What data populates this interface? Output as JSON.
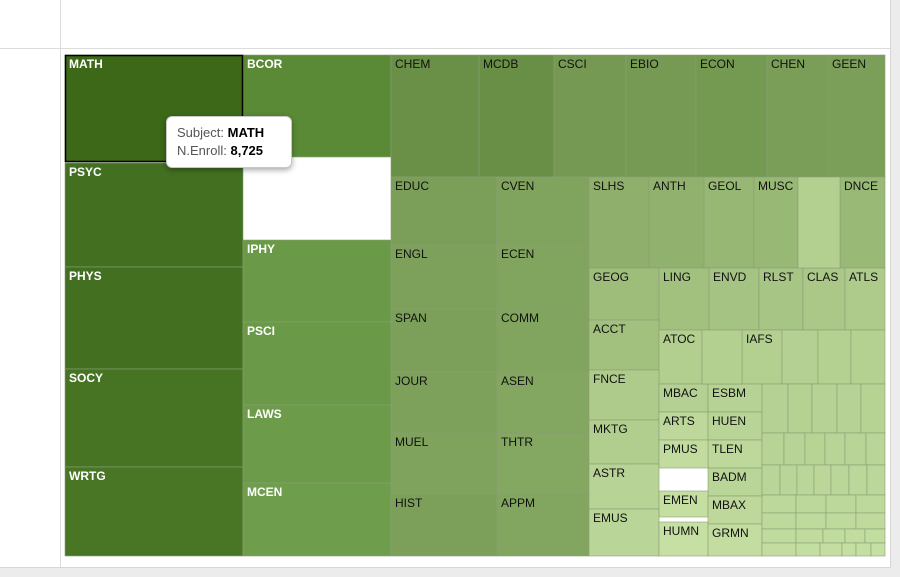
{
  "tooltip": {
    "label_1": "Subject:",
    "value_1": "MATH",
    "label_2": "N.Enroll:",
    "value_2": "8,725"
  },
  "colors": {
    "darkest": "#3c6818",
    "lightest": "#c6e0a4",
    "highlight_border": "#000000"
  },
  "chart_data": {
    "type": "treemap",
    "title": "",
    "value_label": "N.Enroll",
    "highlighted": "MATH",
    "categories": [
      "MATH",
      "PSYC",
      "PHYS",
      "SOCY",
      "WRTG",
      "BCOR",
      "IPHY",
      "PSCI",
      "LAWS",
      "MCEN",
      "CHEM",
      "MCDB",
      "CSCI",
      "EBIO",
      "ECON",
      "CHEN",
      "GEEN",
      "EDUC",
      "CVEN",
      "ENGL",
      "ECEN",
      "SPAN",
      "COMM",
      "JOUR",
      "ASEN",
      "MUEL",
      "THTR",
      "HIST",
      "APPM",
      "SLHS",
      "ANTH",
      "GEOL",
      "MUSC",
      "DNCE",
      "GEOG",
      "LING",
      "ENVD",
      "RLST",
      "CLAS",
      "ATLS",
      "ACCT",
      "ATOC",
      "IAFS",
      "FNCE",
      "MBAC",
      "ESBM",
      "MKTG",
      "ARTS",
      "HUEN",
      "TLEN",
      "PMUS",
      "BADM",
      "ASTR",
      "EMEN",
      "MBAX",
      "EMUS",
      "HUMN",
      "GRMN"
    ],
    "values": [
      8725,
      7100,
      7400,
      7000,
      6900,
      5400,
      4600,
      4500,
      4400,
      4300,
      2700,
      2750,
      2050,
      2000,
      2100,
      1780,
      1750,
      1750,
      1550,
      1650,
      1500,
      1700,
      1520,
      1650,
      1420,
      1600,
      1380,
      1700,
      1450,
      1050,
      1000,
      860,
      840,
      810,
      720,
      650,
      600,
      570,
      520,
      480,
      650,
      430,
      420,
      480,
      410,
      390,
      440,
      330,
      370,
      330,
      290,
      360,
      380,
      270,
      330,
      360,
      260,
      280
    ],
    "unlabeled_cells": [
      {
        "group": "row-2",
        "count": 1
      },
      {
        "group": "row-3",
        "count": 1
      },
      {
        "group": "bottom-right",
        "count": 40
      }
    ]
  }
}
